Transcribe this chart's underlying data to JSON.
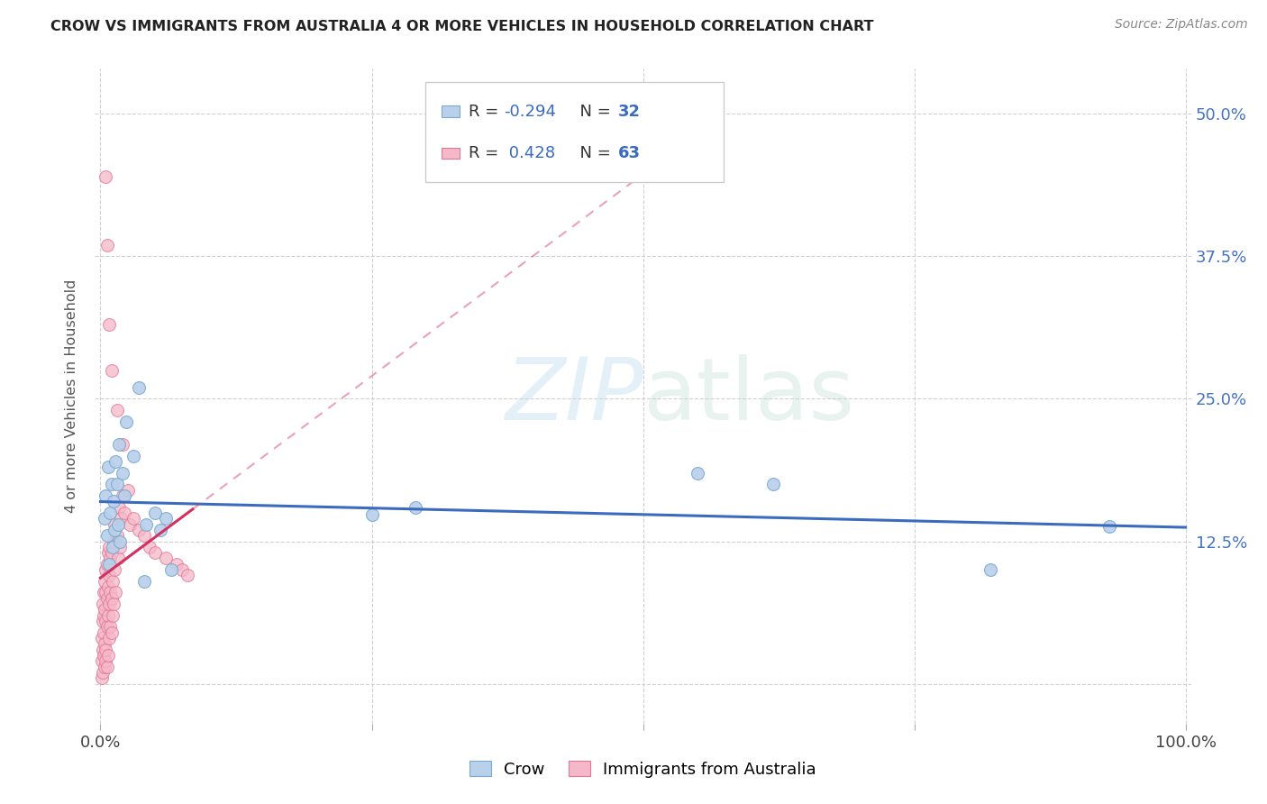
{
  "title": "CROW VS IMMIGRANTS FROM AUSTRALIA 4 OR MORE VEHICLES IN HOUSEHOLD CORRELATION CHART",
  "source": "Source: ZipAtlas.com",
  "ylabel": "4 or more Vehicles in Household",
  "xlim": [
    -0.005,
    1.005
  ],
  "ylim": [
    -0.035,
    0.54
  ],
  "xticks": [
    0.0,
    0.25,
    0.5,
    0.75,
    1.0
  ],
  "xticklabels": [
    "0.0%",
    "",
    "",
    "",
    "100.0%"
  ],
  "yticks": [
    0.0,
    0.125,
    0.25,
    0.375,
    0.5
  ],
  "yticklabels": [
    "",
    "12.5%",
    "25.0%",
    "37.5%",
    "50.0%"
  ],
  "color_crow": "#b8d0ea",
  "color_crow_edge": "#7aaad0",
  "color_aus": "#f5b8c8",
  "color_aus_edge": "#e07898",
  "color_crow_line": "#3b6bbf",
  "color_aus_line": "#d43060",
  "background": "#ffffff",
  "legend_R1": "R = -0.294",
  "legend_N1": "N = 32",
  "legend_R2": "R =  0.428",
  "legend_N2": "N = 63",
  "legend_label1": "Crow",
  "legend_label2": "Immigrants from Australia",
  "crow_x": [
    0.004,
    0.005,
    0.006,
    0.007,
    0.008,
    0.009,
    0.01,
    0.011,
    0.012,
    0.013,
    0.014,
    0.015,
    0.016,
    0.017,
    0.018,
    0.02,
    0.022,
    0.024,
    0.03,
    0.035,
    0.04,
    0.042,
    0.05,
    0.055,
    0.06,
    0.065,
    0.25,
    0.29,
    0.55,
    0.62,
    0.82,
    0.93
  ],
  "crow_y": [
    0.145,
    0.165,
    0.13,
    0.19,
    0.105,
    0.15,
    0.175,
    0.12,
    0.16,
    0.135,
    0.195,
    0.175,
    0.14,
    0.21,
    0.125,
    0.185,
    0.165,
    0.23,
    0.2,
    0.26,
    0.09,
    0.14,
    0.15,
    0.135,
    0.145,
    0.1,
    0.148,
    0.155,
    0.185,
    0.175,
    0.1,
    0.138
  ],
  "aus_x": [
    0.001,
    0.001,
    0.001,
    0.002,
    0.002,
    0.002,
    0.002,
    0.003,
    0.003,
    0.003,
    0.003,
    0.004,
    0.004,
    0.004,
    0.004,
    0.005,
    0.005,
    0.005,
    0.005,
    0.005,
    0.006,
    0.006,
    0.006,
    0.006,
    0.007,
    0.007,
    0.007,
    0.007,
    0.008,
    0.008,
    0.008,
    0.008,
    0.009,
    0.009,
    0.009,
    0.01,
    0.01,
    0.01,
    0.011,
    0.011,
    0.012,
    0.012,
    0.013,
    0.013,
    0.014,
    0.015,
    0.016,
    0.017,
    0.018,
    0.019,
    0.02,
    0.022,
    0.025,
    0.027,
    0.03,
    0.035,
    0.04,
    0.045,
    0.05,
    0.06,
    0.07,
    0.075,
    0.08
  ],
  "aus_y": [
    0.02,
    0.04,
    0.005,
    0.055,
    0.03,
    0.07,
    0.01,
    0.045,
    0.08,
    0.025,
    0.06,
    0.015,
    0.065,
    0.035,
    0.09,
    0.02,
    0.055,
    0.08,
    0.03,
    0.1,
    0.015,
    0.05,
    0.075,
    0.105,
    0.025,
    0.06,
    0.085,
    0.115,
    0.04,
    0.07,
    0.095,
    0.12,
    0.05,
    0.08,
    0.11,
    0.045,
    0.075,
    0.115,
    0.06,
    0.09,
    0.125,
    0.07,
    0.1,
    0.14,
    0.08,
    0.13,
    0.11,
    0.155,
    0.12,
    0.145,
    0.165,
    0.15,
    0.17,
    0.14,
    0.145,
    0.135,
    0.13,
    0.12,
    0.115,
    0.11,
    0.105,
    0.1,
    0.095
  ],
  "aus_outlier_x": [
    0.005,
    0.006,
    0.008,
    0.01,
    0.015,
    0.02
  ],
  "aus_outlier_y": [
    0.445,
    0.385,
    0.315,
    0.275,
    0.24,
    0.21
  ]
}
